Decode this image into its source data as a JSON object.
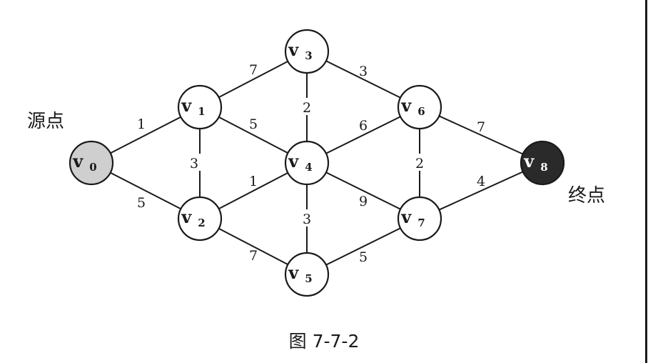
{
  "source_label": "源点",
  "target_label": "终点",
  "caption": "图 7-7-2",
  "nodes": [
    {
      "id": "v0",
      "base": "v",
      "sub": "0",
      "role": "source"
    },
    {
      "id": "v1",
      "base": "v",
      "sub": "1",
      "role": "normal"
    },
    {
      "id": "v2",
      "base": "v",
      "sub": "2",
      "role": "normal"
    },
    {
      "id": "v3",
      "base": "v",
      "sub": "3",
      "role": "normal"
    },
    {
      "id": "v4",
      "base": "v",
      "sub": "4",
      "role": "normal"
    },
    {
      "id": "v5",
      "base": "v",
      "sub": "5",
      "role": "normal"
    },
    {
      "id": "v6",
      "base": "v",
      "sub": "6",
      "role": "normal"
    },
    {
      "id": "v7",
      "base": "v",
      "sub": "7",
      "role": "normal"
    },
    {
      "id": "v8",
      "base": "v",
      "sub": "8",
      "role": "target"
    }
  ],
  "edges": [
    {
      "from": "v0",
      "to": "v1",
      "weight": "1"
    },
    {
      "from": "v0",
      "to": "v2",
      "weight": "5"
    },
    {
      "from": "v1",
      "to": "v2",
      "weight": "3"
    },
    {
      "from": "v1",
      "to": "v3",
      "weight": "7"
    },
    {
      "from": "v1",
      "to": "v4",
      "weight": "5"
    },
    {
      "from": "v2",
      "to": "v4",
      "weight": "1"
    },
    {
      "from": "v2",
      "to": "v5",
      "weight": "7"
    },
    {
      "from": "v3",
      "to": "v4",
      "weight": "2"
    },
    {
      "from": "v3",
      "to": "v6",
      "weight": "3"
    },
    {
      "from": "v4",
      "to": "v6",
      "weight": "6"
    },
    {
      "from": "v4",
      "to": "v7",
      "weight": "9"
    },
    {
      "from": "v4",
      "to": "v5",
      "weight": "3"
    },
    {
      "from": "v5",
      "to": "v7",
      "weight": "5"
    },
    {
      "from": "v6",
      "to": "v7",
      "weight": "2"
    },
    {
      "from": "v6",
      "to": "v8",
      "weight": "7"
    },
    {
      "from": "v7",
      "to": "v8",
      "weight": "4"
    }
  ]
}
